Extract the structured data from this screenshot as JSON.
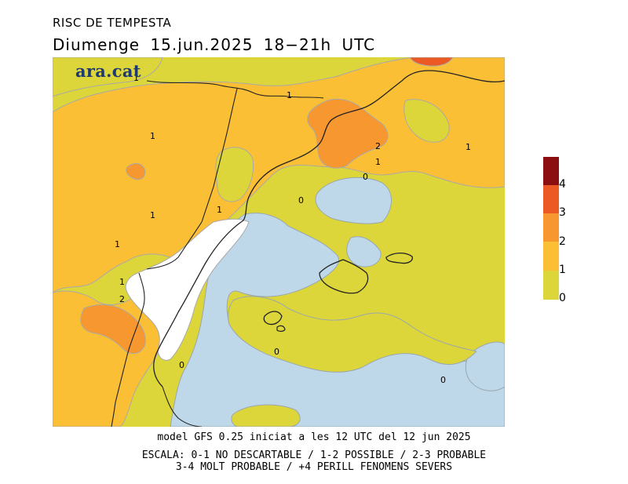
{
  "header": {
    "title": "RISC DE TEMPESTA",
    "subtitle": "Diumenge  15.jun.2025  18−21h  UTC"
  },
  "logo": {
    "text": "ara.cat"
  },
  "map": {
    "contour_labels": [
      "1",
      "1",
      "1",
      "1",
      "1",
      "1",
      "1",
      "1",
      "2",
      "1",
      "0",
      "0",
      "0",
      "0",
      "0",
      "2"
    ]
  },
  "legend": {
    "labels": [
      "4",
      "3",
      "2",
      "1",
      "0"
    ],
    "colors": [
      "#8b0f10",
      "#eb5a24",
      "#f7972f",
      "#fbbf35",
      "#dcd63b"
    ]
  },
  "colors": {
    "sea": "#bed8ea",
    "level_0_1": "#dcd63b",
    "level_1_2": "#fbbf35",
    "level_2_3": "#f7972f",
    "level_3_4": "#eb5a24",
    "level_4_plus": "#8b0f10",
    "no_data": "#ffffff"
  },
  "footer": {
    "line1": "model GFS 0.25 iniciat a les 12 UTC del 12 jun 2025",
    "line2": "ESCALA: 0-1 NO DESCARTABLE / 1-2 POSSIBLE / 2-3 PROBABLE",
    "line3": "3-4 MOLT PROBABLE / +4 PERILL FENOMENS SEVERS"
  }
}
